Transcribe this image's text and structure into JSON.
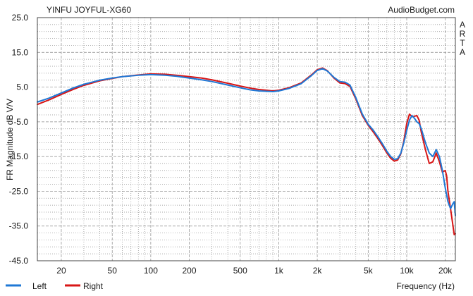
{
  "chart_data": {
    "type": "line",
    "title": "YINFU JOYFUL-XG60",
    "source": "AudioBudget.com",
    "side_label": [
      "A",
      "R",
      "T",
      "A"
    ],
    "xlabel": "Frequency (Hz)",
    "ylabel": "FR Magnitude dB V/V",
    "x_scale": "log",
    "xlim": [
      13,
      24000
    ],
    "ylim": [
      -45,
      25
    ],
    "x_ticks": [
      20,
      50,
      100,
      200,
      500,
      1000,
      2000,
      5000,
      10000,
      20000
    ],
    "x_tick_labels": [
      "20",
      "50",
      "100",
      "200",
      "500",
      "1k",
      "2k",
      "5k",
      "10k",
      "20k"
    ],
    "y_ticks": [
      25,
      15,
      5,
      -5,
      -15,
      -25,
      -35,
      -45
    ],
    "y_tick_labels": [
      "25.0",
      "15.0",
      "5.0",
      "-5.0",
      "-15.0",
      "-25.0",
      "-35.0",
      "-45.0"
    ],
    "grid": true,
    "legend_position": "bottom-left",
    "series": [
      {
        "name": "Left",
        "color": "#1f78d6",
        "points": [
          [
            13,
            0.7
          ],
          [
            16,
            1.8
          ],
          [
            20,
            3.3
          ],
          [
            25,
            4.8
          ],
          [
            30,
            5.8
          ],
          [
            40,
            7.0
          ],
          [
            50,
            7.6
          ],
          [
            60,
            8.0
          ],
          [
            80,
            8.4
          ],
          [
            100,
            8.6
          ],
          [
            130,
            8.4
          ],
          [
            160,
            8.1
          ],
          [
            200,
            7.6
          ],
          [
            250,
            7.1
          ],
          [
            300,
            6.6
          ],
          [
            400,
            5.6
          ],
          [
            500,
            4.8
          ],
          [
            600,
            4.2
          ],
          [
            700,
            3.9
          ],
          [
            800,
            3.8
          ],
          [
            900,
            3.7
          ],
          [
            1000,
            3.9
          ],
          [
            1200,
            4.6
          ],
          [
            1500,
            6.0
          ],
          [
            1800,
            8.3
          ],
          [
            2000,
            9.8
          ],
          [
            2200,
            10.3
          ],
          [
            2400,
            9.6
          ],
          [
            2700,
            7.8
          ],
          [
            3000,
            6.6
          ],
          [
            3300,
            6.4
          ],
          [
            3600,
            5.6
          ],
          [
            4000,
            2.0
          ],
          [
            4500,
            -2.8
          ],
          [
            5000,
            -5.7
          ],
          [
            5500,
            -7.5
          ],
          [
            6000,
            -9.5
          ],
          [
            6500,
            -11.5
          ],
          [
            7000,
            -13.5
          ],
          [
            7500,
            -15.0
          ],
          [
            8000,
            -15.8
          ],
          [
            8500,
            -15.6
          ],
          [
            9000,
            -14.0
          ],
          [
            9500,
            -11.0
          ],
          [
            10000,
            -7.5
          ],
          [
            10500,
            -4.5
          ],
          [
            11000,
            -3.2
          ],
          [
            11500,
            -4.0
          ],
          [
            12000,
            -5.0
          ],
          [
            12500,
            -5.5
          ],
          [
            13000,
            -7.0
          ],
          [
            14000,
            -11.0
          ],
          [
            15000,
            -14.0
          ],
          [
            16000,
            -15.0
          ],
          [
            17000,
            -13.0
          ],
          [
            18000,
            -15.0
          ],
          [
            19000,
            -19.0
          ],
          [
            20000,
            -24.0
          ],
          [
            21000,
            -28.0
          ],
          [
            22000,
            -30.0
          ],
          [
            23000,
            -28.5
          ],
          [
            23500,
            -28.0
          ],
          [
            24000,
            -32.0
          ]
        ]
      },
      {
        "name": "Right",
        "color": "#d81616",
        "points": [
          [
            13,
            0.0
          ],
          [
            16,
            1.3
          ],
          [
            20,
            2.9
          ],
          [
            25,
            4.4
          ],
          [
            30,
            5.5
          ],
          [
            40,
            6.8
          ],
          [
            50,
            7.5
          ],
          [
            60,
            8.0
          ],
          [
            80,
            8.5
          ],
          [
            100,
            8.8
          ],
          [
            130,
            8.7
          ],
          [
            160,
            8.4
          ],
          [
            200,
            8.0
          ],
          [
            250,
            7.6
          ],
          [
            300,
            7.1
          ],
          [
            400,
            6.1
          ],
          [
            500,
            5.3
          ],
          [
            600,
            4.7
          ],
          [
            700,
            4.3
          ],
          [
            800,
            4.1
          ],
          [
            900,
            3.9
          ],
          [
            1000,
            4.1
          ],
          [
            1200,
            4.8
          ],
          [
            1500,
            6.2
          ],
          [
            1800,
            8.5
          ],
          [
            2000,
            10.0
          ],
          [
            2200,
            10.5
          ],
          [
            2400,
            9.7
          ],
          [
            2700,
            7.6
          ],
          [
            3000,
            6.2
          ],
          [
            3300,
            6.0
          ],
          [
            3600,
            5.2
          ],
          [
            4000,
            1.6
          ],
          [
            4500,
            -3.2
          ],
          [
            5000,
            -6.0
          ],
          [
            5500,
            -8.0
          ],
          [
            6000,
            -10.0
          ],
          [
            6500,
            -12.0
          ],
          [
            7000,
            -14.0
          ],
          [
            7500,
            -15.5
          ],
          [
            8000,
            -16.3
          ],
          [
            8500,
            -16.0
          ],
          [
            9000,
            -14.2
          ],
          [
            9500,
            -10.5
          ],
          [
            10000,
            -5.5
          ],
          [
            10500,
            -2.8
          ],
          [
            11000,
            -3.5
          ],
          [
            11500,
            -3.4
          ],
          [
            12000,
            -3.2
          ],
          [
            12500,
            -4.5
          ],
          [
            13000,
            -8.0
          ],
          [
            14000,
            -13.0
          ],
          [
            15000,
            -17.0
          ],
          [
            16000,
            -16.5
          ],
          [
            17000,
            -14.0
          ],
          [
            18000,
            -16.5
          ],
          [
            19000,
            -19.5
          ],
          [
            20000,
            -19.0
          ],
          [
            20500,
            -20.5
          ],
          [
            21000,
            -25.0
          ],
          [
            22000,
            -30.0
          ],
          [
            23000,
            -35.0
          ],
          [
            23500,
            -37.5
          ],
          [
            24000,
            -37.2
          ]
        ]
      }
    ]
  }
}
